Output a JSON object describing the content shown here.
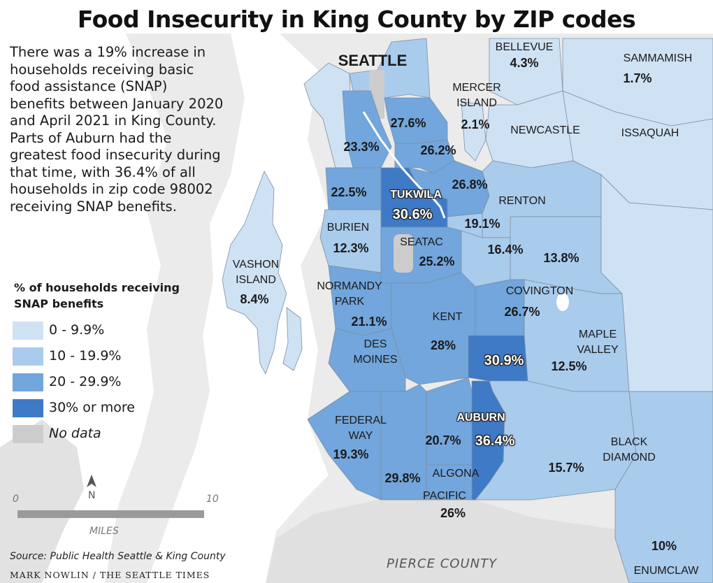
{
  "title": "Food Insecurity in King County by ZIP codes",
  "intro": "There was a 19% increase in\nhouseholds receiving basic\nfood assistance (SNAP)\nbenefits between January 2020\nand April 2021 in King County.\nParts of Auburn had the\ngreatest food insecurity during\nthat time, with 36.4% of all\nhouseholds in zip code 98002\nreceiving SNAP benefits.",
  "legend": {
    "title": "% of households receiving\nSNAP benefits",
    "items": [
      {
        "label": "0 - 9.9%",
        "color": "#cfe2f4"
      },
      {
        "label": "10 - 19.9%",
        "color": "#a9cbec"
      },
      {
        "label": "20 - 29.9%",
        "color": "#72a6dc"
      },
      {
        "label": "30% or more",
        "color": "#3f7ac6"
      },
      {
        "label": "No data",
        "color": "#cccccc"
      }
    ]
  },
  "colors": {
    "water": "#ffffff",
    "land": "#ebebeb",
    "land_dark": "#dcdcdc",
    "boundary": "#7b8fa3"
  },
  "scale": {
    "zero": "0",
    "ten": "10",
    "unit": "MILES",
    "north": "N"
  },
  "source": "Source: Public Health Seattle & King County",
  "credit": "MARK NOWLIN / THE SEATTLE TIMES",
  "pierce_county": "PIERCE COUNTY",
  "areas": {
    "seattle": {
      "name": "SEATTLE"
    },
    "bellevue": {
      "name": "BELLEVUE",
      "value": "4.3%"
    },
    "sammamish": {
      "name": "SAMMAMISH",
      "value": "1.7%"
    },
    "mercer": {
      "name": "MERCER\nISLAND",
      "value": "2.1%"
    },
    "newcastle": {
      "name": "NEWCASTLE"
    },
    "issaquah": {
      "name": "ISSAQUAH"
    },
    "renton": {
      "name": "RENTON"
    },
    "tukwila": {
      "name": "TUKWILA",
      "value": "30.6%"
    },
    "burien": {
      "name": "BURIEN",
      "value": "12.3%"
    },
    "seatac": {
      "name": "SEATAC",
      "value": "25.2%"
    },
    "vashon": {
      "name": "VASHON\nISLAND",
      "value": "8.4%"
    },
    "normandy_park": {
      "name": "NORMANDY\nPARK",
      "value": "21.1%"
    },
    "kent": {
      "name": "KENT",
      "value": "28%"
    },
    "des_moines": {
      "name": "DES\nMOINES"
    },
    "covington": {
      "name": "COVINGTON",
      "value": "26.7%"
    },
    "maple_valley": {
      "name": "MAPLE\nVALLEY",
      "value": "12.5%"
    },
    "federal_way": {
      "name": "FEDERAL\nWAY",
      "value": "19.3%"
    },
    "auburn": {
      "name": "AUBURN",
      "value": "36.4%"
    },
    "algona": {
      "name": "ALGONA"
    },
    "pacific": {
      "name": "PACIFIC",
      "value": "26%"
    },
    "black_diamond": {
      "name": "BLACK\nDIAMOND",
      "value": "15.7%"
    },
    "enumclaw": {
      "name": "ENUMCLAW",
      "value": "10%"
    }
  },
  "values": {
    "v_276": "27.6%",
    "v_233": "23.3%",
    "v_262": "26.2%",
    "v_268": "26.8%",
    "v_225": "22.5%",
    "v_191": "19.1%",
    "v_164": "16.4%",
    "v_138": "13.8%",
    "v_309": "30.9%",
    "v_207": "20.7%",
    "v_298": "29.8%"
  }
}
